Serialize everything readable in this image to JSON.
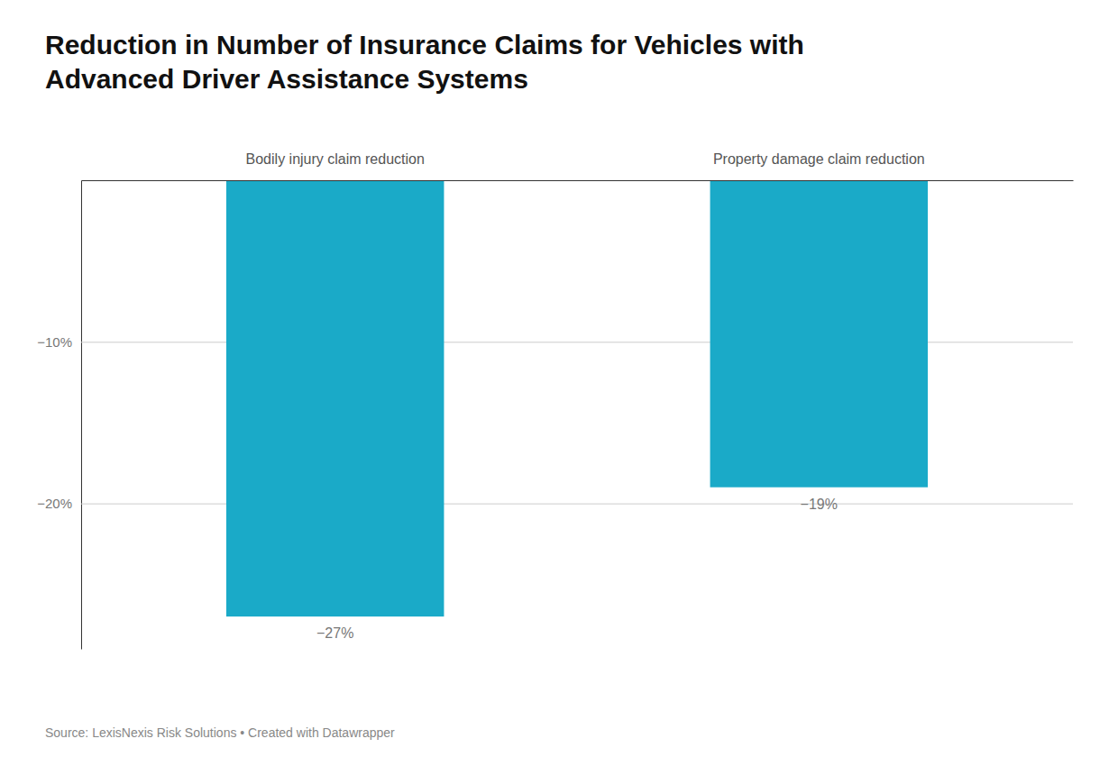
{
  "chart_data": {
    "type": "bar",
    "title": "Reduction in Number of Insurance Claims for Vehicles with\nAdvanced Driver Assistance Systems",
    "categories": [
      "Bodily injury claim reduction",
      "Property damage claim reduction"
    ],
    "values": [
      -27,
      -19
    ],
    "value_labels": [
      "−27%",
      "−19%"
    ],
    "data_labels": true,
    "color": "#1AAAC8",
    "ylim": [
      -29,
      0
    ],
    "yticks": [
      {
        "value": -10,
        "label": "−10%"
      },
      {
        "value": -20,
        "label": "−20%"
      }
    ],
    "grid": true,
    "source": "Source: LexisNexis Risk Solutions • Created with Datawrapper"
  }
}
